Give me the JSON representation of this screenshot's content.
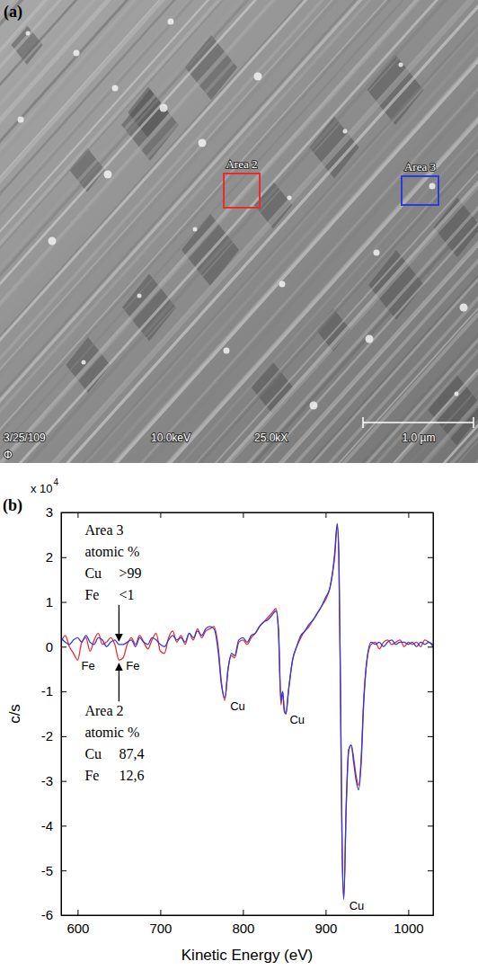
{
  "image_panel": {
    "panel_label": "(a)",
    "regions": [
      {
        "label": "Area 2",
        "color": "#ee2a2a"
      },
      {
        "label": "Area 3",
        "color": "#2a3ce0"
      }
    ],
    "info_bar": {
      "date": "3/25/109",
      "voltage": "10.0keV",
      "magnification": "25.0kX",
      "scale_bar": "1.0 µm",
      "logo": "Φ"
    }
  },
  "chart_data": {
    "type": "line",
    "panel_label": "(b)",
    "x_label": "Kinetic Energy (eV)",
    "y_label": "c/s",
    "y_multiplier": {
      "text": "x 10",
      "exponent": "4"
    },
    "xlim": [
      580,
      1030
    ],
    "xticks": [
      600,
      700,
      800,
      900,
      1000
    ],
    "ylim": [
      -6,
      3
    ],
    "yticks": [
      3,
      2,
      1,
      0,
      -1,
      -2,
      -3,
      -4,
      -5,
      -6
    ],
    "grid": false,
    "x": [
      580,
      585,
      590,
      595,
      600,
      605,
      610,
      615,
      620,
      625,
      630,
      635,
      640,
      645,
      650,
      655,
      660,
      665,
      670,
      675,
      680,
      685,
      690,
      695,
      700,
      705,
      710,
      715,
      720,
      725,
      730,
      735,
      740,
      745,
      750,
      755,
      760,
      765,
      770,
      774,
      778,
      782,
      786,
      790,
      795,
      800,
      805,
      810,
      815,
      820,
      825,
      830,
      835,
      840,
      843,
      846,
      848,
      850,
      852,
      855,
      860,
      865,
      870,
      875,
      880,
      885,
      890,
      895,
      900,
      905,
      908,
      911,
      914,
      916,
      918,
      920,
      922,
      925,
      928,
      931,
      934,
      937,
      940,
      943,
      946,
      950,
      955,
      960,
      965,
      970,
      975,
      980,
      985,
      990,
      995,
      1000,
      1005,
      1010,
      1015,
      1020,
      1025,
      1030
    ],
    "series": [
      {
        "name": "Area 2",
        "color": "#ee2a2a",
        "unit_label": "atomic %",
        "composition": [
          {
            "element": "Cu",
            "amount": "87,4"
          },
          {
            "element": "Fe",
            "amount": "12,6"
          }
        ],
        "values": [
          0.1,
          0.25,
          0.0,
          -0.15,
          -0.3,
          0.1,
          0.2,
          -0.1,
          0.15,
          0.3,
          0.05,
          0.1,
          0.2,
          0.05,
          -0.3,
          -0.25,
          0.05,
          0.2,
          0.05,
          0.25,
          0.1,
          -0.05,
          0.15,
          0.3,
          -0.1,
          -0.15,
          0.2,
          0.35,
          0.1,
          0.25,
          0.05,
          0.3,
          0.15,
          0.4,
          0.2,
          0.35,
          0.4,
          0.45,
          0.0,
          -0.8,
          -1.2,
          -0.5,
          -0.2,
          -0.25,
          0.1,
          0.15,
          0.05,
          0.2,
          0.3,
          0.45,
          0.55,
          0.65,
          0.75,
          0.85,
          0.3,
          -1.3,
          -1.0,
          -1.45,
          -1.5,
          -1.0,
          -0.3,
          0.0,
          0.2,
          0.35,
          0.45,
          0.6,
          0.75,
          0.9,
          1.05,
          1.3,
          1.6,
          2.0,
          2.7,
          2.0,
          -1.0,
          -4.5,
          -5.6,
          -3.5,
          -2.3,
          -2.2,
          -2.5,
          -2.9,
          -3.1,
          -2.5,
          -1.2,
          -0.3,
          0.05,
          0.1,
          -0.05,
          0.1,
          0.15,
          0.05,
          0.1,
          0.15,
          0.0,
          0.1,
          0.05,
          0.1,
          0.0,
          0.15,
          0.1,
          0.05
        ]
      },
      {
        "name": "Area 3",
        "color": "#2a3ce0",
        "unit_label": "atomic %",
        "composition": [
          {
            "element": "Cu",
            "amount": ">99"
          },
          {
            "element": "Fe",
            "amount": "<1"
          }
        ],
        "values": [
          0.2,
          0.1,
          0.05,
          0.15,
          0.2,
          0.1,
          0.25,
          0.1,
          0.05,
          0.2,
          0.15,
          0.0,
          0.1,
          0.15,
          0.05,
          0.05,
          0.1,
          0.15,
          0.0,
          0.2,
          0.1,
          0.05,
          0.2,
          0.15,
          0.05,
          0.0,
          0.15,
          0.25,
          0.15,
          0.2,
          0.1,
          0.3,
          0.2,
          0.35,
          0.25,
          0.4,
          0.45,
          0.4,
          -0.1,
          -0.85,
          -1.15,
          -0.5,
          -0.15,
          -0.2,
          0.15,
          0.2,
          0.1,
          0.25,
          0.3,
          0.45,
          0.55,
          0.6,
          0.7,
          0.8,
          0.4,
          -1.2,
          -1.0,
          -1.4,
          -1.5,
          -1.0,
          -0.3,
          0.0,
          0.25,
          0.35,
          0.5,
          0.6,
          0.75,
          0.9,
          1.1,
          1.3,
          1.6,
          2.1,
          2.75,
          2.1,
          -1.0,
          -4.6,
          -5.65,
          -3.5,
          -2.3,
          -2.2,
          -2.6,
          -3.0,
          -3.2,
          -2.6,
          -1.3,
          -0.3,
          0.1,
          0.05,
          0.1,
          0.0,
          0.1,
          0.15,
          0.05,
          0.1,
          0.1,
          0.05,
          0.1,
          0.0,
          0.1,
          0.05,
          0.1,
          0.0
        ]
      }
    ],
    "peak_labels": [
      {
        "text": "Fe",
        "x": 598
      },
      {
        "text": "Fe",
        "x": 652
      },
      {
        "text": "Cu",
        "x": 778
      },
      {
        "text": "Cu",
        "x": 850
      },
      {
        "text": "Cu",
        "x": 922
      }
    ]
  }
}
